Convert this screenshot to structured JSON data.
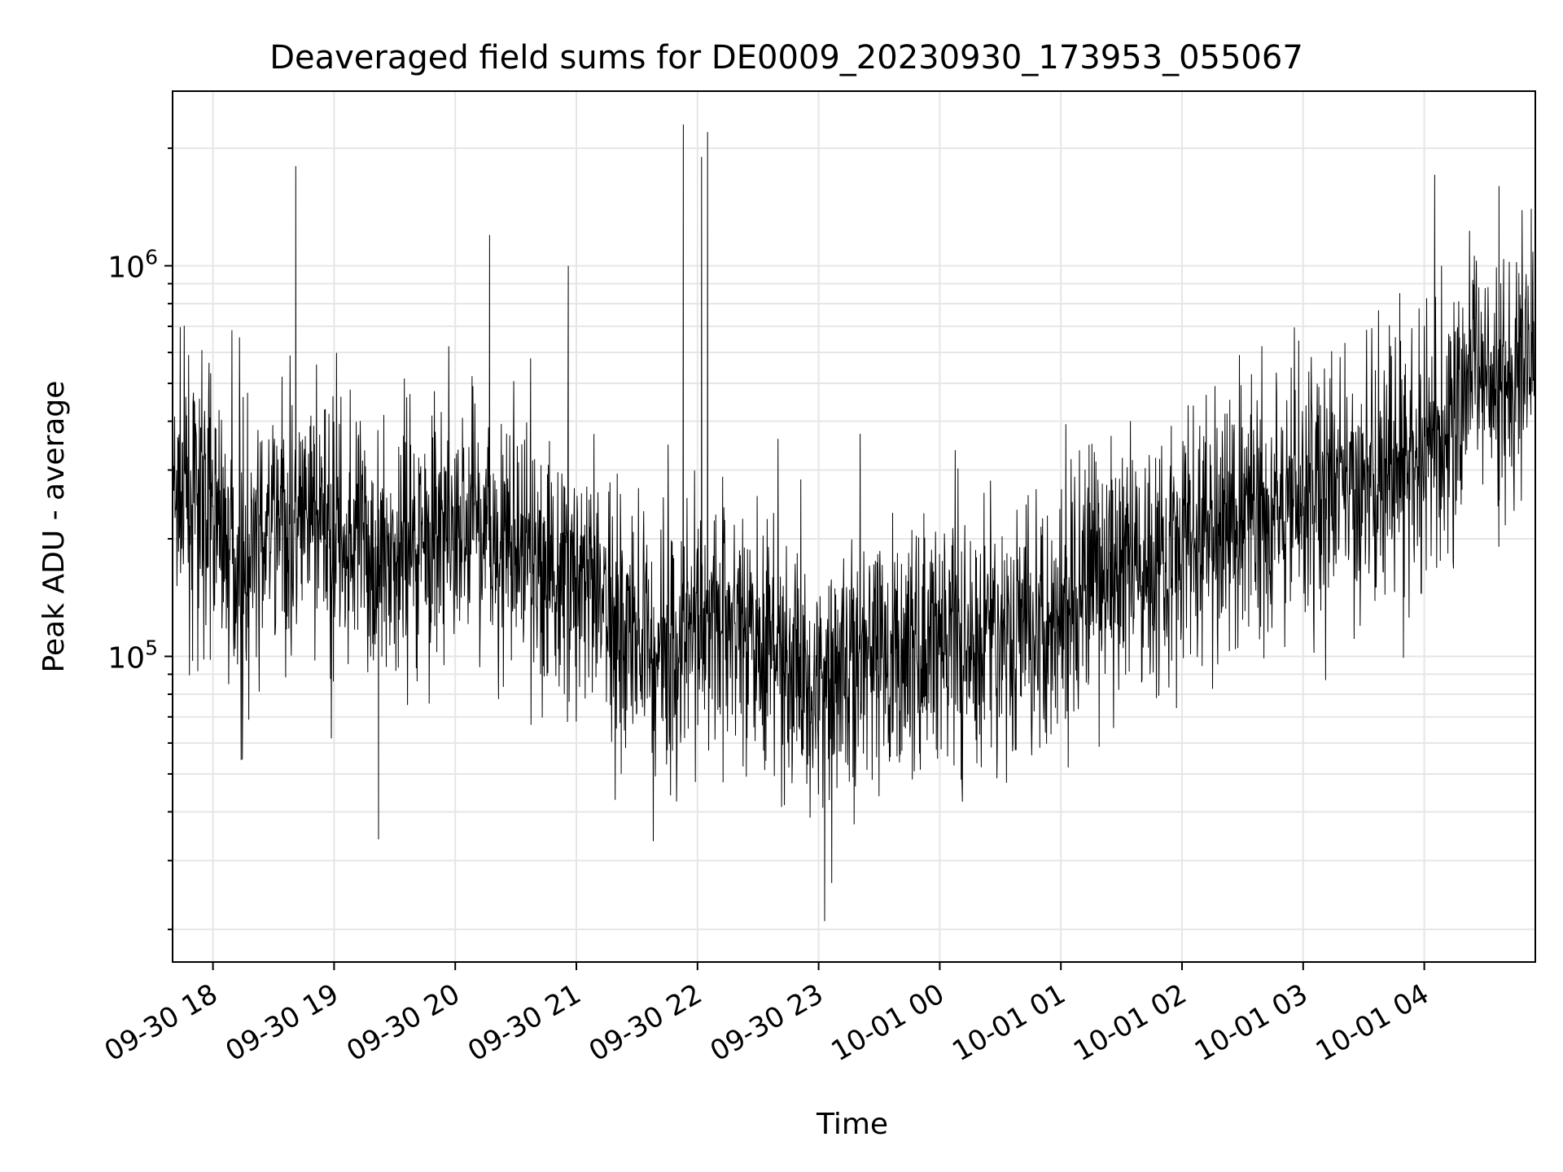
{
  "chart_data": {
    "type": "line",
    "title": "Deaveraged field sums for DE0009_20230930_173953_055067",
    "xlabel": "Time",
    "ylabel": "Peak ADU - average",
    "x_range": [
      "2023-09-30 17:40:00",
      "2023-10-01 04:55:00"
    ],
    "ylim": [
      16500,
      2800000
    ],
    "yscale": "log",
    "grid": true,
    "legend": "none",
    "colors": {
      "line": "#000000",
      "grid": "#e6e6e6",
      "axes": "#000000"
    },
    "x_ticks": [
      {
        "t": "2023-09-30 18:00",
        "label": "09-30 18"
      },
      {
        "t": "2023-09-30 19:00",
        "label": "09-30 19"
      },
      {
        "t": "2023-09-30 20:00",
        "label": "09-30 20"
      },
      {
        "t": "2023-09-30 21:00",
        "label": "09-30 21"
      },
      {
        "t": "2023-09-30 22:00",
        "label": "09-30 22"
      },
      {
        "t": "2023-09-30 23:00",
        "label": "09-30 23"
      },
      {
        "t": "2023-10-01 00:00",
        "label": "10-01 00"
      },
      {
        "t": "2023-10-01 01:00",
        "label": "10-01 01"
      },
      {
        "t": "2023-10-01 02:00",
        "label": "10-01 02"
      },
      {
        "t": "2023-10-01 03:00",
        "label": "10-01 03"
      },
      {
        "t": "2023-10-01 04:00",
        "label": "10-01 04"
      }
    ],
    "y_major_ticks": [
      {
        "value": 100000,
        "base": "10",
        "exp": "5"
      },
      {
        "value": 1000000,
        "base": "10",
        "exp": "6"
      }
    ],
    "series": [
      {
        "points": [
          [
            "2023-09-30 17:40",
            240000
          ],
          [
            "2023-09-30 17:45",
            260000
          ],
          [
            "2023-09-30 17:50",
            250000
          ],
          [
            "2023-09-30 17:55",
            270000
          ],
          [
            "2023-09-30 18:00",
            250000
          ],
          [
            "2023-09-30 18:05",
            220000
          ],
          [
            "2023-09-30 18:10",
            180000
          ],
          [
            "2023-09-30 18:15",
            165000
          ],
          [
            "2023-09-30 18:20",
            175000
          ],
          [
            "2023-09-30 18:25",
            200000
          ],
          [
            "2023-09-30 18:30",
            215000
          ],
          [
            "2023-09-30 18:35",
            205000
          ],
          [
            "2023-09-30 18:40",
            210000
          ],
          [
            "2023-09-30 18:45",
            225000
          ],
          [
            "2023-09-30 18:50",
            220000
          ],
          [
            "2023-09-30 18:55",
            215000
          ],
          [
            "2023-09-30 19:00",
            200000
          ],
          [
            "2023-09-30 19:10",
            190000
          ],
          [
            "2023-09-30 19:20",
            185000
          ],
          [
            "2023-09-30 19:30",
            190000
          ],
          [
            "2023-09-30 19:40",
            205000
          ],
          [
            "2023-09-30 19:50",
            210000
          ],
          [
            "2023-09-30 20:00",
            205000
          ],
          [
            "2023-09-30 20:10",
            215000
          ],
          [
            "2023-09-30 20:20",
            210000
          ],
          [
            "2023-09-30 20:30",
            190000
          ],
          [
            "2023-09-30 20:40",
            175000
          ],
          [
            "2023-09-30 20:50",
            165000
          ],
          [
            "2023-09-30 21:00",
            160000
          ],
          [
            "2023-09-30 21:10",
            140000
          ],
          [
            "2023-09-30 21:20",
            125000
          ],
          [
            "2023-09-30 21:30",
            115000
          ],
          [
            "2023-09-30 21:40",
            110000
          ],
          [
            "2023-09-30 21:50",
            105000
          ],
          [
            "2023-09-30 22:00",
            135000
          ],
          [
            "2023-09-30 22:10",
            130000
          ],
          [
            "2023-09-30 22:20",
            120000
          ],
          [
            "2023-09-30 22:30",
            110000
          ],
          [
            "2023-09-30 22:40",
            100000
          ],
          [
            "2023-09-30 22:50",
            92000
          ],
          [
            "2023-09-30 23:00",
            88000
          ],
          [
            "2023-09-30 23:10",
            95000
          ],
          [
            "2023-09-30 23:20",
            100000
          ],
          [
            "2023-09-30 23:30",
            98000
          ],
          [
            "2023-09-30 23:40",
            100000
          ],
          [
            "2023-09-30 23:50",
            103000
          ],
          [
            "2023-10-01 00:00",
            105000
          ],
          [
            "2023-10-01 00:10",
            108000
          ],
          [
            "2023-10-01 00:20",
            110000
          ],
          [
            "2023-10-01 00:30",
            112000
          ],
          [
            "2023-10-01 00:40",
            118000
          ],
          [
            "2023-10-01 00:50",
            130000
          ],
          [
            "2023-10-01 01:00",
            135000
          ],
          [
            "2023-10-01 01:10",
            145000
          ],
          [
            "2023-10-01 01:20",
            155000
          ],
          [
            "2023-10-01 01:30",
            165000
          ],
          [
            "2023-10-01 01:40",
            175000
          ],
          [
            "2023-10-01 01:50",
            190000
          ],
          [
            "2023-10-01 02:00",
            200000
          ],
          [
            "2023-10-01 02:10",
            210000
          ],
          [
            "2023-10-01 02:20",
            220000
          ],
          [
            "2023-10-01 02:30",
            230000
          ],
          [
            "2023-10-01 02:40",
            240000
          ],
          [
            "2023-10-01 02:50",
            250000
          ],
          [
            "2023-10-01 03:00",
            255000
          ],
          [
            "2023-10-01 03:10",
            260000
          ],
          [
            "2023-10-01 03:20",
            270000
          ],
          [
            "2023-10-01 03:30",
            275000
          ],
          [
            "2023-10-01 03:40",
            285000
          ],
          [
            "2023-10-01 03:50",
            300000
          ],
          [
            "2023-10-01 04:00",
            320000
          ],
          [
            "2023-10-01 04:10",
            360000
          ],
          [
            "2023-10-01 04:20",
            480000
          ],
          [
            "2023-10-01 04:30",
            550000
          ],
          [
            "2023-10-01 04:40",
            520000
          ],
          [
            "2023-10-01 04:50",
            560000
          ],
          [
            "2023-10-01 04:55",
            580000
          ]
        ],
        "spikes": [
          [
            "2023-09-30 18:41",
            1800000
          ],
          [
            "2023-09-30 19:22",
            34000
          ],
          [
            "2023-09-30 20:17",
            1200000
          ],
          [
            "2023-09-30 20:56",
            1000000
          ],
          [
            "2023-09-30 21:53",
            2300000
          ],
          [
            "2023-09-30 22:05",
            2200000
          ],
          [
            "2023-09-30 22:02",
            1900000
          ],
          [
            "2023-09-30 23:03",
            21000
          ],
          [
            "2023-10-01 04:37",
            1600000
          ],
          [
            "2023-10-01 04:53",
            1400000
          ]
        ]
      }
    ]
  }
}
